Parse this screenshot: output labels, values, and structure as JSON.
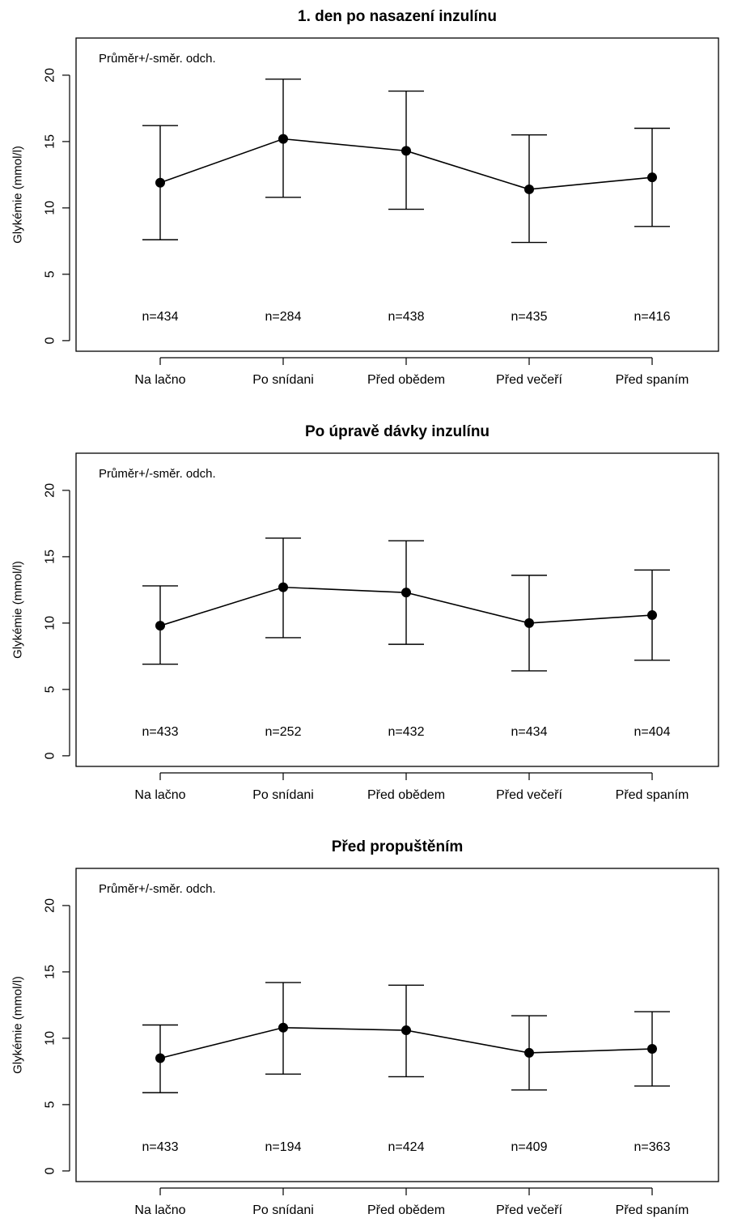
{
  "chart_data": [
    {
      "type": "line",
      "title": "1. den po nasazení inzulínu",
      "ylabel": "Glykémie (mmol/l)",
      "xlabel": "",
      "annotation": "Průměr+/-směr. odch.",
      "categories": [
        "Na lačno",
        "Po snídani",
        "Před obědem",
        "Před večeří",
        "Před spaním"
      ],
      "yticks": [
        0,
        5,
        10,
        15,
        20
      ],
      "ylim": [
        -0.8,
        22.8
      ],
      "grid": false,
      "mean": [
        11.9,
        15.2,
        14.3,
        11.4,
        12.3
      ],
      "lower": [
        7.6,
        10.8,
        9.9,
        7.4,
        8.6
      ],
      "upper": [
        16.2,
        19.7,
        18.8,
        15.5,
        16.0
      ],
      "n": [
        "n=434",
        "n=284",
        "n=438",
        "n=435",
        "n=416"
      ]
    },
    {
      "type": "line",
      "title": "Po úpravě dávky inzulínu",
      "ylabel": "Glykémie (mmol/l)",
      "xlabel": "",
      "annotation": "Průměr+/-směr. odch.",
      "categories": [
        "Na lačno",
        "Po snídani",
        "Před obědem",
        "Před večeří",
        "Před spaním"
      ],
      "yticks": [
        0,
        5,
        10,
        15,
        20
      ],
      "ylim": [
        -0.8,
        22.8
      ],
      "grid": false,
      "mean": [
        9.8,
        12.7,
        12.3,
        10.0,
        10.6
      ],
      "lower": [
        6.9,
        8.9,
        8.4,
        6.4,
        7.2
      ],
      "upper": [
        12.8,
        16.4,
        16.2,
        13.6,
        14.0
      ],
      "n": [
        "n=433",
        "n=252",
        "n=432",
        "n=434",
        "n=404"
      ]
    },
    {
      "type": "line",
      "title": "Před propuštěním",
      "ylabel": "Glykémie (mmol/l)",
      "xlabel": "",
      "annotation": "Průměr+/-směr. odch.",
      "categories": [
        "Na lačno",
        "Po snídani",
        "Před obědem",
        "Před večeří",
        "Před spaním"
      ],
      "yticks": [
        0,
        5,
        10,
        15,
        20
      ],
      "ylim": [
        -0.8,
        22.8
      ],
      "grid": false,
      "mean": [
        8.5,
        10.8,
        10.6,
        8.9,
        9.2
      ],
      "lower": [
        5.9,
        7.3,
        7.1,
        6.1,
        6.4
      ],
      "upper": [
        11.0,
        14.2,
        14.0,
        11.7,
        12.0
      ],
      "n": [
        "n=433",
        "n=194",
        "n=424",
        "n=409",
        "n=363"
      ]
    }
  ]
}
